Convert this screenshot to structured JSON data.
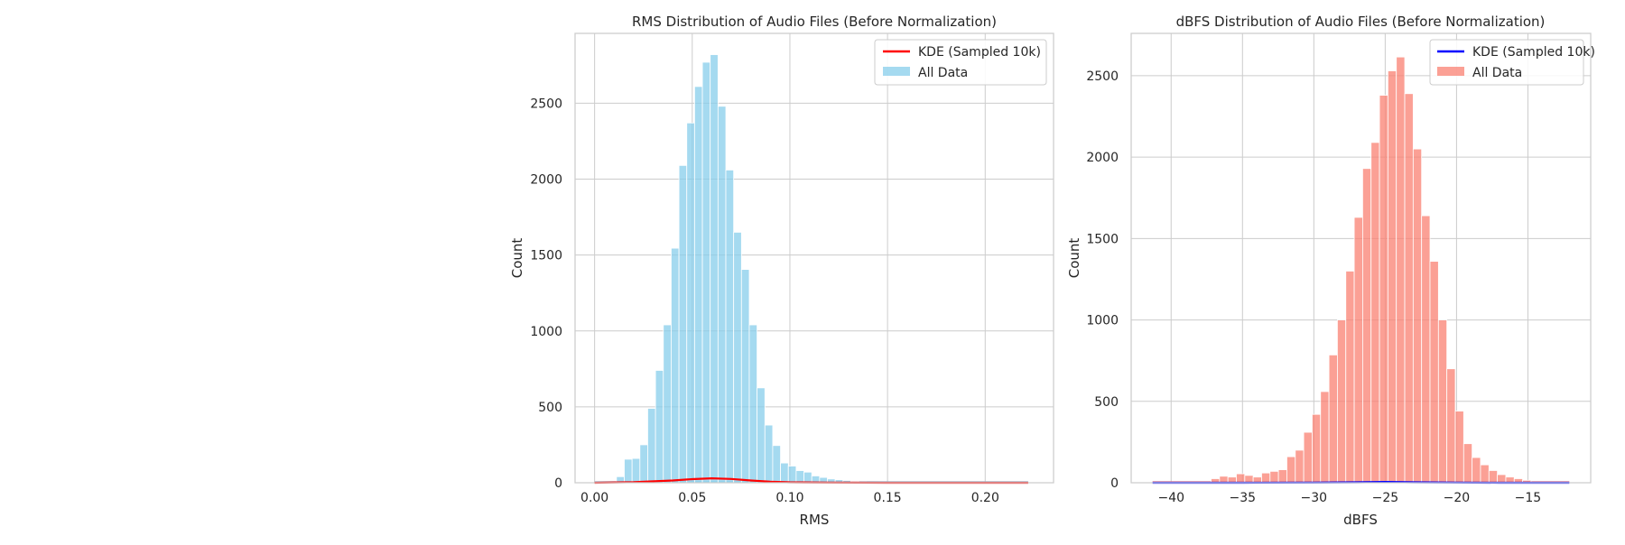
{
  "chart_data": [
    {
      "type": "histogram",
      "title": "RMS Distribution of Audio Files (Before Normalization)",
      "xlabel": "RMS",
      "ylabel": "Count",
      "xlim": [
        -0.01,
        0.235
      ],
      "ylim": [
        0,
        2960
      ],
      "xticks": [
        0.0,
        0.05,
        0.1,
        0.15,
        0.2
      ],
      "xtick_labels": [
        "0.00",
        "0.05",
        "0.10",
        "0.15",
        "0.20"
      ],
      "yticks": [
        0,
        500,
        1000,
        1500,
        2000,
        2500
      ],
      "ytick_labels": [
        "0",
        "500",
        "1000",
        "1500",
        "2000",
        "2500"
      ],
      "grid": true,
      "legend_position": "top-right",
      "bin_width": 0.004,
      "bin_starts": [
        0.0112,
        0.0152,
        0.0192,
        0.0232,
        0.0272,
        0.0312,
        0.0352,
        0.0392,
        0.0432,
        0.0472,
        0.0512,
        0.0552,
        0.0592,
        0.0632,
        0.0672,
        0.0712,
        0.0752,
        0.0792,
        0.0832,
        0.0872,
        0.0912,
        0.0952,
        0.0992,
        0.1032,
        0.1072,
        0.1112,
        0.1152,
        0.1192,
        0.1232,
        0.1272,
        0.1312,
        0.1352
      ],
      "counts": [
        40,
        155,
        160,
        250,
        490,
        740,
        1040,
        1545,
        2090,
        2370,
        2610,
        2770,
        2820,
        2480,
        2060,
        1650,
        1405,
        1040,
        625,
        380,
        245,
        130,
        110,
        80,
        70,
        45,
        35,
        25,
        20,
        15,
        10,
        5
      ],
      "tail_x_range": [
        0.0,
        0.222
      ],
      "series": [
        {
          "name": "KDE (Sampled 10k)",
          "type": "line",
          "color": "#ff0000",
          "x": [
            0.0,
            0.02,
            0.04,
            0.05,
            0.06,
            0.07,
            0.08,
            0.09,
            0.1,
            0.12,
            0.15,
            0.2,
            0.222
          ],
          "y": [
            0,
            4,
            15,
            24,
            29,
            25,
            15,
            7,
            3,
            1,
            0,
            0,
            0
          ]
        },
        {
          "name": "All Data",
          "type": "bar",
          "color": "#87ceeb"
        }
      ]
    },
    {
      "type": "histogram",
      "title": "dBFS Distribution of Audio Files (Before Normalization)",
      "xlabel": "dBFS",
      "ylabel": "Count",
      "xlim": [
        -42.8,
        -10.6
      ],
      "ylim": [
        0,
        2760
      ],
      "xticks": [
        -40,
        -35,
        -30,
        -25,
        -20,
        -15
      ],
      "xtick_labels": [
        "−40",
        "−35",
        "−30",
        "−25",
        "−20",
        "−15"
      ],
      "yticks": [
        0,
        500,
        1000,
        1500,
        2000,
        2500
      ],
      "ytick_labels": [
        "0",
        "500",
        "1000",
        "1500",
        "2000",
        "2500"
      ],
      "grid": true,
      "legend_position": "top-right",
      "bin_width": 0.59,
      "bin_starts": [
        -37.2,
        -36.61,
        -36.02,
        -35.43,
        -34.84,
        -34.25,
        -33.66,
        -33.07,
        -32.48,
        -31.89,
        -31.3,
        -30.71,
        -30.12,
        -29.53,
        -28.94,
        -28.35,
        -27.76,
        -27.17,
        -26.58,
        -25.99,
        -25.4,
        -24.81,
        -24.22,
        -23.63,
        -23.04,
        -22.45,
        -21.86,
        -21.27,
        -20.68,
        -20.09,
        -19.5,
        -18.91,
        -18.32,
        -17.73,
        -17.14,
        -16.55,
        -15.96,
        -15.37
      ],
      "counts": [
        25,
        40,
        35,
        55,
        45,
        35,
        60,
        70,
        80,
        160,
        200,
        310,
        420,
        560,
        785,
        1000,
        1300,
        1630,
        1930,
        2090,
        2380,
        2530,
        2615,
        2390,
        2050,
        1640,
        1360,
        1000,
        700,
        440,
        240,
        155,
        110,
        75,
        50,
        35,
        25,
        15
      ],
      "tail_x_range": [
        -41.3,
        -12.1
      ],
      "series": [
        {
          "name": "KDE (Sampled 10k)",
          "type": "line",
          "color": "#0000ff",
          "x": [
            -41.3,
            -35,
            -30,
            -27,
            -25,
            -23,
            -20,
            -17,
            -12.1
          ],
          "y": [
            0,
            0,
            1,
            3,
            5,
            3,
            1,
            0,
            0
          ]
        },
        {
          "name": "All Data",
          "type": "bar",
          "color": "#fa8072"
        }
      ]
    }
  ]
}
